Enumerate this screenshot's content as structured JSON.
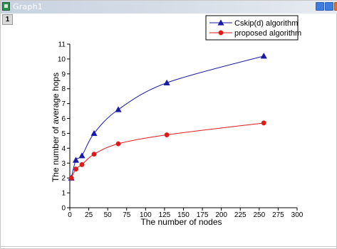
{
  "window": {
    "title": "Graph1",
    "layer_label": "1"
  },
  "colors": {
    "series_blue": "#1a1aa8",
    "series_red": "#e01a1a",
    "titlebar": "#c8d2e0"
  },
  "icons": {
    "app": "graph-window-icon",
    "minimize": "minimize-icon",
    "maximize": "maximize-icon",
    "close": "close-icon"
  },
  "chart_data": {
    "type": "line",
    "xlabel": "The number of nodes",
    "ylabel": "The number of average hops",
    "xlim": [
      0,
      300
    ],
    "ylim": [
      0,
      11
    ],
    "xticks": [
      0,
      25,
      50,
      75,
      100,
      125,
      150,
      175,
      200,
      225,
      250,
      275,
      300
    ],
    "yticks": [
      0,
      1,
      2,
      3,
      4,
      5,
      6,
      7,
      8,
      9,
      10,
      11
    ],
    "grid": false,
    "legend_position": "top-right",
    "series": [
      {
        "name": "Cskip(d) algorithm",
        "marker": "triangle",
        "color": "#1a1aa8",
        "x": [
          2,
          8,
          16,
          32,
          64,
          128,
          256
        ],
        "y": [
          2.0,
          3.2,
          3.5,
          5.0,
          6.6,
          8.4,
          10.2
        ]
      },
      {
        "name": "proposed algorithm",
        "marker": "circle",
        "color": "#e01a1a",
        "x": [
          2,
          8,
          16,
          32,
          64,
          128,
          256
        ],
        "y": [
          2.0,
          2.6,
          2.9,
          3.6,
          4.3,
          4.9,
          5.7
        ]
      }
    ]
  }
}
